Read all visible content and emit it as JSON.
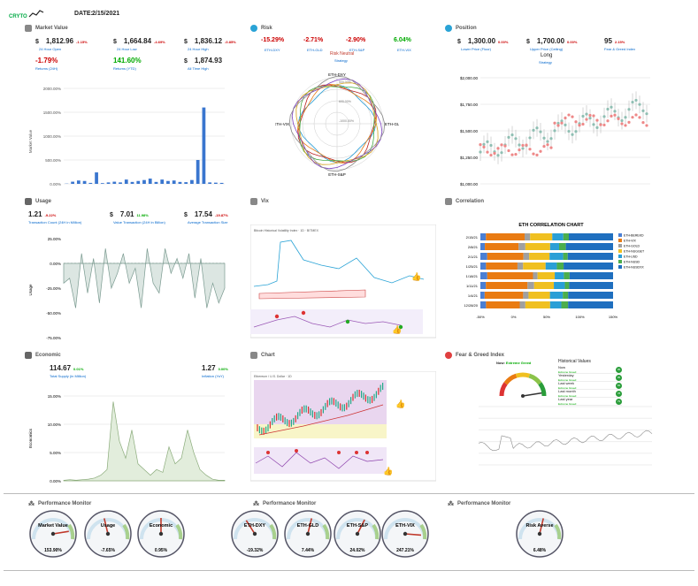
{
  "header": {
    "logo": "CRYTO",
    "date_label": "DATE:",
    "date": "2/15/2021"
  },
  "market": {
    "title": "Market Value",
    "stats": [
      {
        "cur": "$",
        "val": "1,812.96",
        "chg": "-1.15%",
        "pos": false,
        "lbl": "24 Hour Open"
      },
      {
        "cur": "$",
        "val": "1,664.84",
        "chg": "-4.69%",
        "pos": false,
        "lbl": "24 Hour Low"
      },
      {
        "cur": "$",
        "val": "1,836.12",
        "chg": "-0.85%",
        "pos": false,
        "lbl": "24 Hour High"
      },
      {
        "cur": "",
        "val": "-1.79%",
        "chg": "",
        "pos": false,
        "lbl": "Returns (24H)"
      },
      {
        "cur": "",
        "val": "141.60%",
        "chg": "",
        "pos": true,
        "lbl": "Returns (YTD)"
      },
      {
        "cur": "$",
        "val": "1,874.93",
        "chg": "",
        "pos": true,
        "lbl": "All Time High"
      }
    ],
    "ylabel": "Market Value",
    "yticks": [
      "2000.00%",
      "1500.00%",
      "1000.00%",
      "500.00%",
      "0.00%"
    ]
  },
  "risk": {
    "title": "Risk",
    "stats": [
      {
        "val": "-15.29%",
        "lbl": "ETH-DXY",
        "pos": false
      },
      {
        "val": "-2.71%",
        "lbl": "ETH-GLD",
        "pos": false
      },
      {
        "val": "-2.90%",
        "lbl": "ETH-S&P",
        "pos": false
      },
      {
        "val": "6.04%",
        "lbl": "ETH-VIX",
        "pos": true
      }
    ],
    "strategy_value": "Risk Neutral",
    "strategy_label": "Strategy",
    "axes": [
      "ETH-DXY",
      "ETH-GLD",
      "ETH-S&P",
      "ETH-VIX"
    ],
    "rings": [
      "500.00%",
      "600.00%",
      "-1000.00%"
    ]
  },
  "position": {
    "title": "Position",
    "stats": [
      {
        "cur": "$",
        "val": "1,300.00",
        "chg": "0.00%",
        "lbl": "Lower Price (Floor)"
      },
      {
        "cur": "$",
        "val": "1,700.00",
        "chg": "0.00%",
        "lbl": "Upper Price (Ceiling)"
      },
      {
        "cur": "",
        "val": "95",
        "chg": "2.15%",
        "lbl": "Fear & Greed Index"
      }
    ],
    "strategy_value": "Long",
    "strategy_label": "Strategy",
    "yticks": [
      "$2,000.00",
      "$1,750.00",
      "$1,500.00",
      "$1,250.00",
      "$1,000.00"
    ]
  },
  "usage": {
    "title": "Usage",
    "stats": [
      {
        "cur": "",
        "val": "1.21",
        "chg": "-9.22%",
        "pos": false,
        "lbl": "Transaction Count (24H in Million)"
      },
      {
        "cur": "$",
        "val": "7.01",
        "chg": "11.98%",
        "pos": true,
        "lbl": "Value Transaction (24H in Billion)"
      },
      {
        "cur": "$",
        "val": "17.54",
        "chg": "-19.87%",
        "pos": false,
        "lbl": "Average Transaction Size"
      }
    ],
    "ylabel": "Usage",
    "yticks": [
      "25.00%",
      "0.00%",
      "-25.00%",
      "-50.00%",
      "-75.00%"
    ]
  },
  "vix": {
    "title": "Vix",
    "legend": "Bitcoin Historical Volatility Index · 1D · BITMEX"
  },
  "correlation": {
    "title": "Correlation",
    "chart_title": "ETH CORRELATION CHART",
    "legend": [
      "ETH-BEREKD",
      "ETH-VIX",
      "ETH-GOLD",
      "ETH-NUGGET",
      "ETH-USD",
      "ETH-NUSD",
      "ETH-NUSDXX"
    ],
    "legend_colors": [
      "#4a7fd4",
      "#e97b12",
      "#a0a0a0",
      "#f0c020",
      "#2a9fd6",
      "#4cae4c",
      "#1f6fbf"
    ],
    "rows": [
      "2/15/2021",
      "2/8/2021",
      "2/1/2021",
      "1/25/2021",
      "1/18/2021",
      "1/11/2021",
      "1/4/2021",
      "12/28/2020"
    ],
    "row_labels": [
      "2/15/21",
      "2/8/21",
      "2/1/21",
      "1/25/21",
      "1/18/21",
      "1/11/21",
      "1/4/21",
      "12/28/20"
    ],
    "xticks": [
      "-50%",
      "0%",
      "50%",
      "100%",
      "150%"
    ]
  },
  "economic": {
    "title": "Economic",
    "stats": [
      {
        "cur": "",
        "val": "114.67",
        "chg": "0.01%",
        "pos": true,
        "lbl": "Total Supply (in Million)"
      },
      {
        "cur": "",
        "val": "1.27",
        "chg": "0.00%",
        "pos": true,
        "lbl": "Inflation (YoY)"
      }
    ],
    "ylabel": "Economics",
    "yticks": [
      "15.00%",
      "10.00%",
      "5.00%",
      "0.00%"
    ]
  },
  "chart": {
    "title": "Chart",
    "legend": "Ethereum / U.S. Dollar · 1D"
  },
  "fear": {
    "title": "Fear & Greed Index",
    "now_label": "Now:",
    "now_value": "Extreme Greed",
    "hist_title": "Historical Values",
    "hist": [
      {
        "lbl": "Now",
        "sub": "Extreme Greed",
        "val": "95"
      },
      {
        "lbl": "Yesterday",
        "sub": "Extreme Greed",
        "val": "95"
      },
      {
        "lbl": "Last week",
        "sub": "Extreme Greed",
        "val": "84"
      },
      {
        "lbl": "Last month",
        "sub": "Extreme Greed",
        "val": "78"
      },
      {
        "lbl": "Last year",
        "sub": "Extreme Greed",
        "val": "79"
      }
    ]
  },
  "perf1": {
    "title": "Performance Monitor",
    "gauges": [
      {
        "name": "Market Value",
        "value": "153.90%",
        "level": 0.8
      },
      {
        "name": "Usage",
        "value": "-7.65%",
        "level": 0.45
      },
      {
        "name": "Economic",
        "value": "0.95%",
        "level": 0.5
      }
    ]
  },
  "perf2": {
    "title": "Performance Monitor",
    "gauges": [
      {
        "name": "ETH-DXY",
        "value": "-19.32%",
        "level": 0.38
      },
      {
        "name": "ETH-GLD",
        "value": "7.44%",
        "level": 0.55
      },
      {
        "name": "ETH-S&P",
        "value": "24.02%",
        "level": 0.6
      },
      {
        "name": "ETH-VIX",
        "value": "247.21%",
        "level": 0.85
      }
    ]
  },
  "perf3": {
    "title": "Performance Monitor",
    "gauges": [
      {
        "name": "Risk Averse",
        "value": "6.48%",
        "level": 0.55
      }
    ]
  },
  "chart_data": [
    {
      "type": "bar",
      "title": "",
      "ylabel": "Market Value",
      "ylim": [
        0,
        2000
      ],
      "values": [
        5,
        45,
        70,
        60,
        20,
        240,
        15,
        30,
        45,
        30,
        90,
        40,
        60,
        80,
        110,
        40,
        90,
        60,
        70,
        40,
        35,
        80,
        500,
        1600,
        30,
        25,
        20
      ]
    },
    {
      "type": "area",
      "ylabel": "Usage",
      "ylim": [
        -75,
        25
      ],
      "values": [
        -20,
        -15,
        -45,
        10,
        -30,
        5,
        -40,
        15,
        -25,
        -10,
        10,
        -20,
        -5,
        -45,
        15,
        -20,
        -30,
        15,
        -10,
        5,
        -15,
        10,
        -35,
        5,
        -45,
        -20,
        -40,
        -25
      ]
    },
    {
      "type": "area",
      "ylabel": "Economics",
      "ylim": [
        0,
        15
      ],
      "values": [
        0.1,
        0.2,
        0.1,
        0.2,
        0.3,
        0.5,
        1,
        2,
        14,
        7,
        4,
        9,
        3,
        2,
        1,
        2,
        1.5,
        6,
        3,
        4,
        9,
        5,
        2,
        1,
        0.3,
        0.1,
        0.1
      ]
    },
    {
      "type": "bar",
      "title": "ETH CORRELATION CHART",
      "xlim": [
        -50,
        150
      ],
      "categories": [
        "2/15/21",
        "2/8/21",
        "2/1/21",
        "1/25/21",
        "1/18/21",
        "1/11/21",
        "1/4/21",
        "12/28/20"
      ],
      "series": [
        {
          "name": "ETH-BEREKD",
          "values": [
            5,
            4,
            6,
            5,
            6,
            5,
            4,
            5
          ]
        },
        {
          "name": "ETH-VIX",
          "values": [
            35,
            30,
            32,
            28,
            40,
            38,
            36,
            30
          ]
        },
        {
          "name": "ETH-GOLD",
          "values": [
            5,
            6,
            5,
            5,
            4,
            6,
            5,
            5
          ]
        },
        {
          "name": "ETH-NUGGET",
          "values": [
            20,
            22,
            18,
            20,
            15,
            18,
            20,
            22
          ]
        },
        {
          "name": "ETH-USD",
          "values": [
            10,
            8,
            12,
            10,
            8,
            10,
            12,
            10
          ]
        },
        {
          "name": "ETH-NUSD",
          "values": [
            5,
            6,
            4,
            6,
            5,
            4,
            5,
            6
          ]
        },
        {
          "name": "ETH-NUSDXX",
          "values": [
            40,
            42,
            40,
            44,
            38,
            40,
            42,
            40
          ]
        }
      ]
    }
  ]
}
